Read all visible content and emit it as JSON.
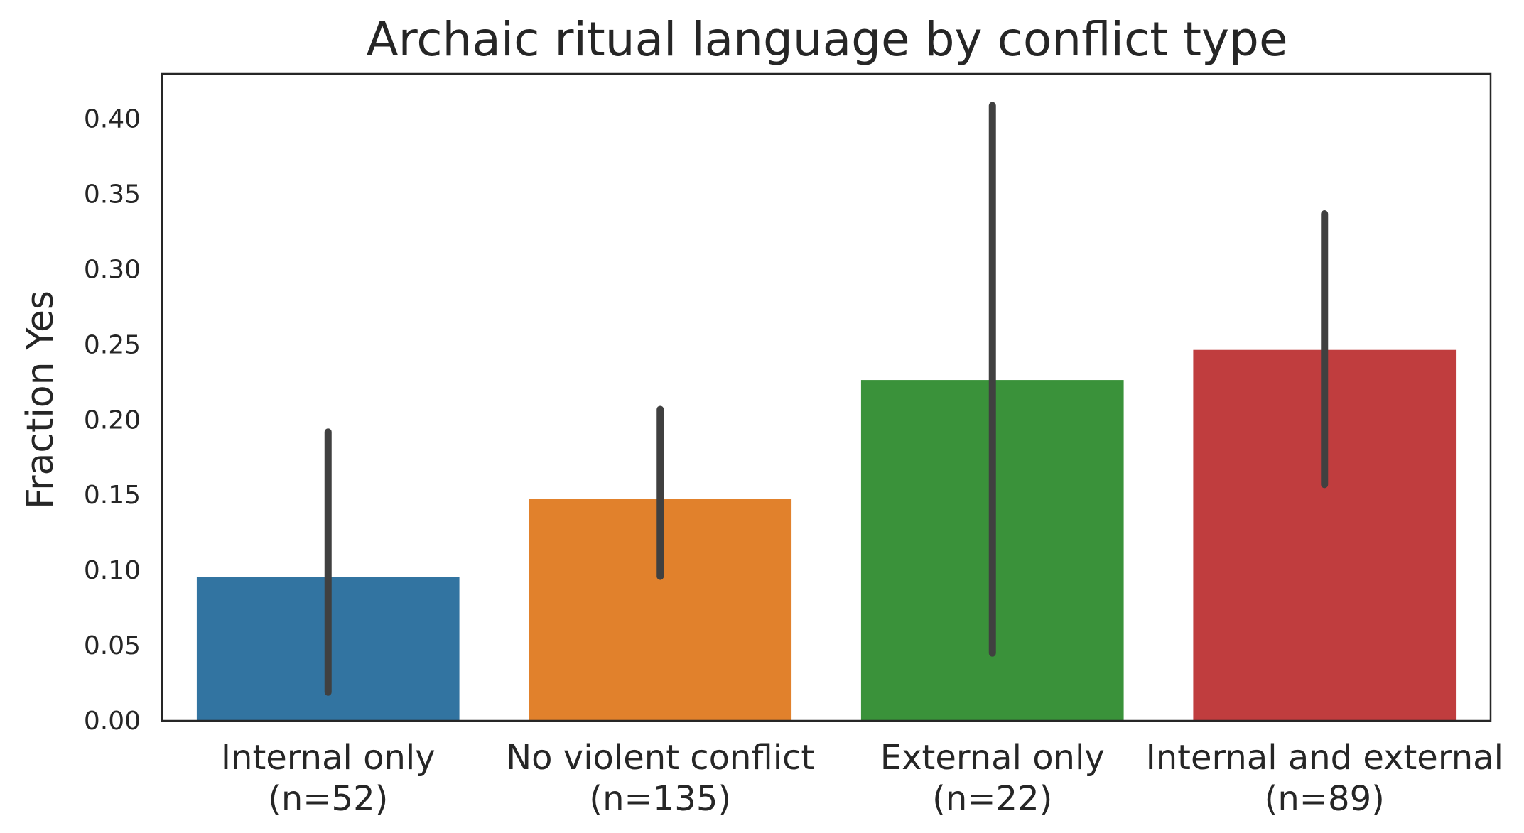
{
  "chart_data": {
    "type": "bar",
    "title": "Archaic ritual language by conflict type",
    "xlabel": "",
    "ylabel": "Fraction Yes",
    "ylim": [
      0,
      0.43
    ],
    "yticks": [
      "0.00",
      "0.05",
      "0.10",
      "0.15",
      "0.20",
      "0.25",
      "0.30",
      "0.35",
      "0.40"
    ],
    "categories": [
      {
        "line1": "Internal only",
        "line2": "(n=52)"
      },
      {
        "line1": "No violent conflict",
        "line2": "(n=135)"
      },
      {
        "line1": "External only",
        "line2": "(n=22)"
      },
      {
        "line1": "Internal and external",
        "line2": "(n=89)"
      }
    ],
    "values": [
      0.096,
      0.148,
      0.227,
      0.247
    ],
    "error_bars": [
      [
        0.019,
        0.192
      ],
      [
        0.096,
        0.207
      ],
      [
        0.045,
        0.409
      ],
      [
        0.157,
        0.337
      ]
    ],
    "colors": [
      "#3274a1",
      "#e1812c",
      "#3a923a",
      "#c03d3e"
    ],
    "error_color": "#404040",
    "grid": false,
    "legend": "none"
  }
}
